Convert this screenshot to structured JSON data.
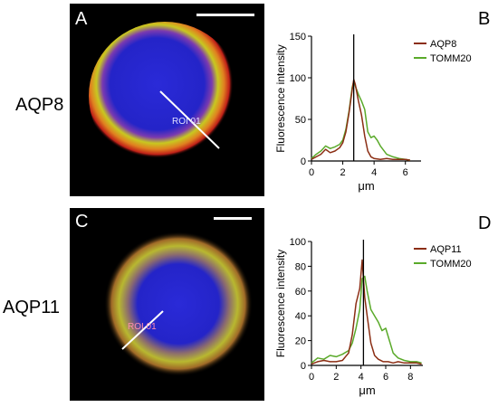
{
  "labels": {
    "row1": "AQP8",
    "row2": "AQP11",
    "panel_a": "A",
    "panel_b": "B",
    "panel_c": "C",
    "panel_d": "D",
    "roi_a": "ROI 01",
    "roi_c": "ROI 01"
  },
  "colors": {
    "aqp": "#8b2e14",
    "tomm20": "#5aaa2a",
    "marker": "#000000",
    "nucleus": "#2424c8"
  },
  "chart_data": [
    {
      "type": "line",
      "panel": "B",
      "xlabel": "μm",
      "ylabel": "Fluorescence intensity",
      "xlim": [
        0,
        7
      ],
      "ylim": [
        0,
        150
      ],
      "xticks": [
        0,
        2,
        4,
        6
      ],
      "yticks": [
        0,
        50,
        100,
        150
      ],
      "marker_x": 2.7,
      "series": [
        {
          "name": "AQP8",
          "color": "#8b2e14",
          "x": [
            0,
            0.3,
            0.6,
            0.9,
            1.2,
            1.5,
            1.8,
            2.0,
            2.2,
            2.4,
            2.6,
            2.7,
            2.8,
            3.0,
            3.2,
            3.4,
            3.6,
            3.8,
            4.0,
            4.4,
            4.8,
            5.2,
            5.6,
            6.0,
            6.3
          ],
          "y": [
            2,
            5,
            8,
            14,
            10,
            12,
            16,
            22,
            35,
            58,
            85,
            98,
            92,
            72,
            55,
            30,
            12,
            5,
            3,
            2,
            3,
            2,
            2,
            2,
            1
          ]
        },
        {
          "name": "TOMM20",
          "color": "#5aaa2a",
          "x": [
            0,
            0.3,
            0.6,
            0.9,
            1.2,
            1.5,
            1.8,
            2.0,
            2.2,
            2.4,
            2.6,
            2.7,
            2.8,
            3.0,
            3.2,
            3.4,
            3.6,
            3.8,
            4.0,
            4.2,
            4.4,
            4.8,
            5.2,
            5.6,
            6.0,
            6.3
          ],
          "y": [
            3,
            8,
            12,
            18,
            15,
            17,
            20,
            25,
            38,
            60,
            88,
            96,
            90,
            80,
            72,
            62,
            35,
            28,
            30,
            25,
            18,
            8,
            5,
            3,
            2,
            1
          ]
        }
      ]
    },
    {
      "type": "line",
      "panel": "D",
      "xlabel": "μm",
      "ylabel": "Fluorescence intensity",
      "xlim": [
        0,
        9
      ],
      "ylim": [
        0,
        100
      ],
      "xticks": [
        0,
        2,
        4,
        6,
        8
      ],
      "yticks": [
        0,
        20,
        40,
        60,
        80,
        100
      ],
      "marker_x": 4.2,
      "series": [
        {
          "name": "AQP11",
          "color": "#8b2e14",
          "x": [
            0,
            0.5,
            1.0,
            1.5,
            2.0,
            2.5,
            3.0,
            3.3,
            3.6,
            3.9,
            4.1,
            4.3,
            4.5,
            4.8,
            5.1,
            5.4,
            5.8,
            6.2,
            6.6,
            7.0,
            7.5,
            8.0,
            8.5,
            8.9
          ],
          "y": [
            1,
            3,
            4,
            3,
            3,
            4,
            10,
            25,
            50,
            62,
            85,
            55,
            40,
            18,
            8,
            5,
            3,
            3,
            2,
            3,
            2,
            2,
            2,
            1
          ]
        },
        {
          "name": "TOMM20",
          "color": "#5aaa2a",
          "x": [
            0,
            0.5,
            1.0,
            1.5,
            2.0,
            2.5,
            3.0,
            3.3,
            3.6,
            3.9,
            4.1,
            4.3,
            4.5,
            4.8,
            5.1,
            5.4,
            5.7,
            6.0,
            6.3,
            6.6,
            7.0,
            7.5,
            8.0,
            8.5,
            8.9
          ],
          "y": [
            2,
            6,
            5,
            8,
            7,
            9,
            12,
            18,
            30,
            45,
            70,
            72,
            60,
            45,
            40,
            35,
            28,
            30,
            20,
            10,
            6,
            4,
            3,
            3,
            2
          ]
        }
      ]
    }
  ]
}
